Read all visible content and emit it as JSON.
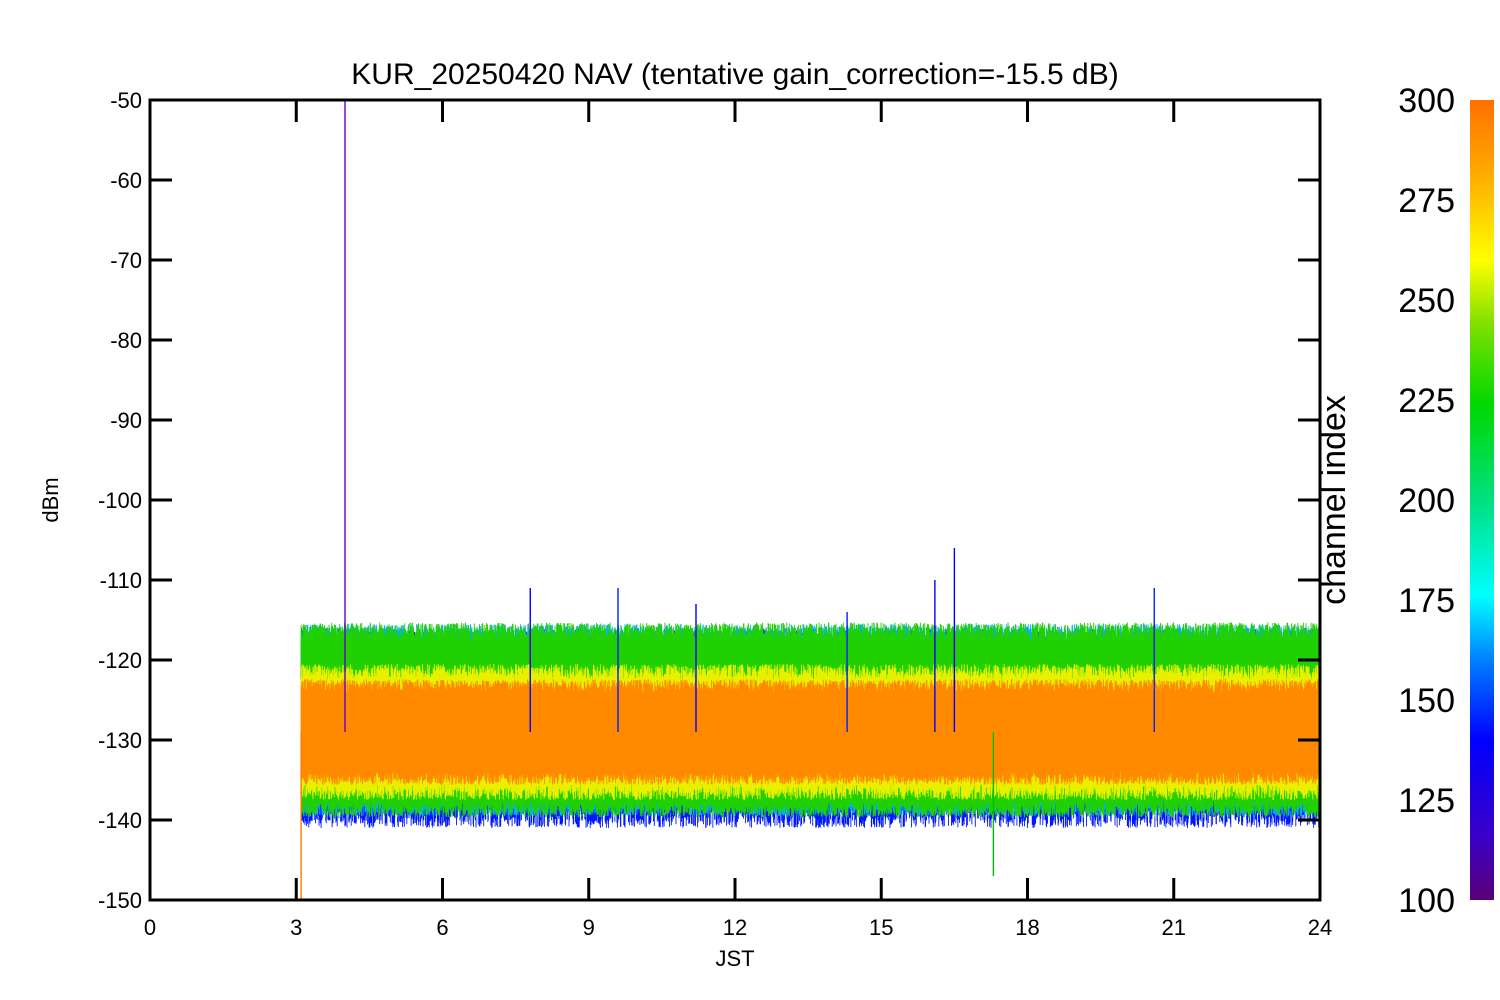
{
  "chart_data": {
    "type": "line",
    "title": "KUR_20250420 NAV (tentative gain_correction=-15.5 dB)",
    "xlabel": "JST",
    "ylabel": "dBm",
    "xlim": [
      0,
      24
    ],
    "ylim": [
      -150,
      -50
    ],
    "x_ticks": [
      "0",
      "3",
      "6",
      "9",
      "12",
      "15",
      "18",
      "21",
      "24"
    ],
    "y_ticks": [
      "-50",
      "-60",
      "-70",
      "-80",
      "-90",
      "-100",
      "-110",
      "-120",
      "-130",
      "-140",
      "-150"
    ],
    "grid": false,
    "data_start_x": 3.1,
    "data_end_x": 24,
    "noise_band": {
      "center": -129,
      "core_low": -134,
      "core_high": -124,
      "outer_low": -140,
      "outer_high": -119
    },
    "spikes": [
      {
        "x": 4.0,
        "y": -50,
        "color": "#6a00c8"
      },
      {
        "x": 3.1,
        "y": -150,
        "color": "#ff7a00"
      },
      {
        "x": 7.8,
        "y": -111,
        "color": "#0000ff"
      },
      {
        "x": 9.6,
        "y": -111,
        "color": "#0020ff"
      },
      {
        "x": 11.2,
        "y": -113,
        "color": "#0000ff"
      },
      {
        "x": 14.3,
        "y": -114,
        "color": "#0020ff"
      },
      {
        "x": 16.1,
        "y": -110,
        "color": "#0000ff"
      },
      {
        "x": 16.5,
        "y": -106,
        "color": "#0000ff"
      },
      {
        "x": 17.3,
        "y": -147,
        "color": "#00c000"
      },
      {
        "x": 20.6,
        "y": -111,
        "color": "#0020ff"
      }
    ],
    "colorbar": {
      "label": "channel index",
      "range": [
        100,
        300
      ],
      "ticks": [
        "300",
        "275",
        "250",
        "225",
        "200",
        "175",
        "150",
        "125",
        "100"
      ]
    }
  }
}
